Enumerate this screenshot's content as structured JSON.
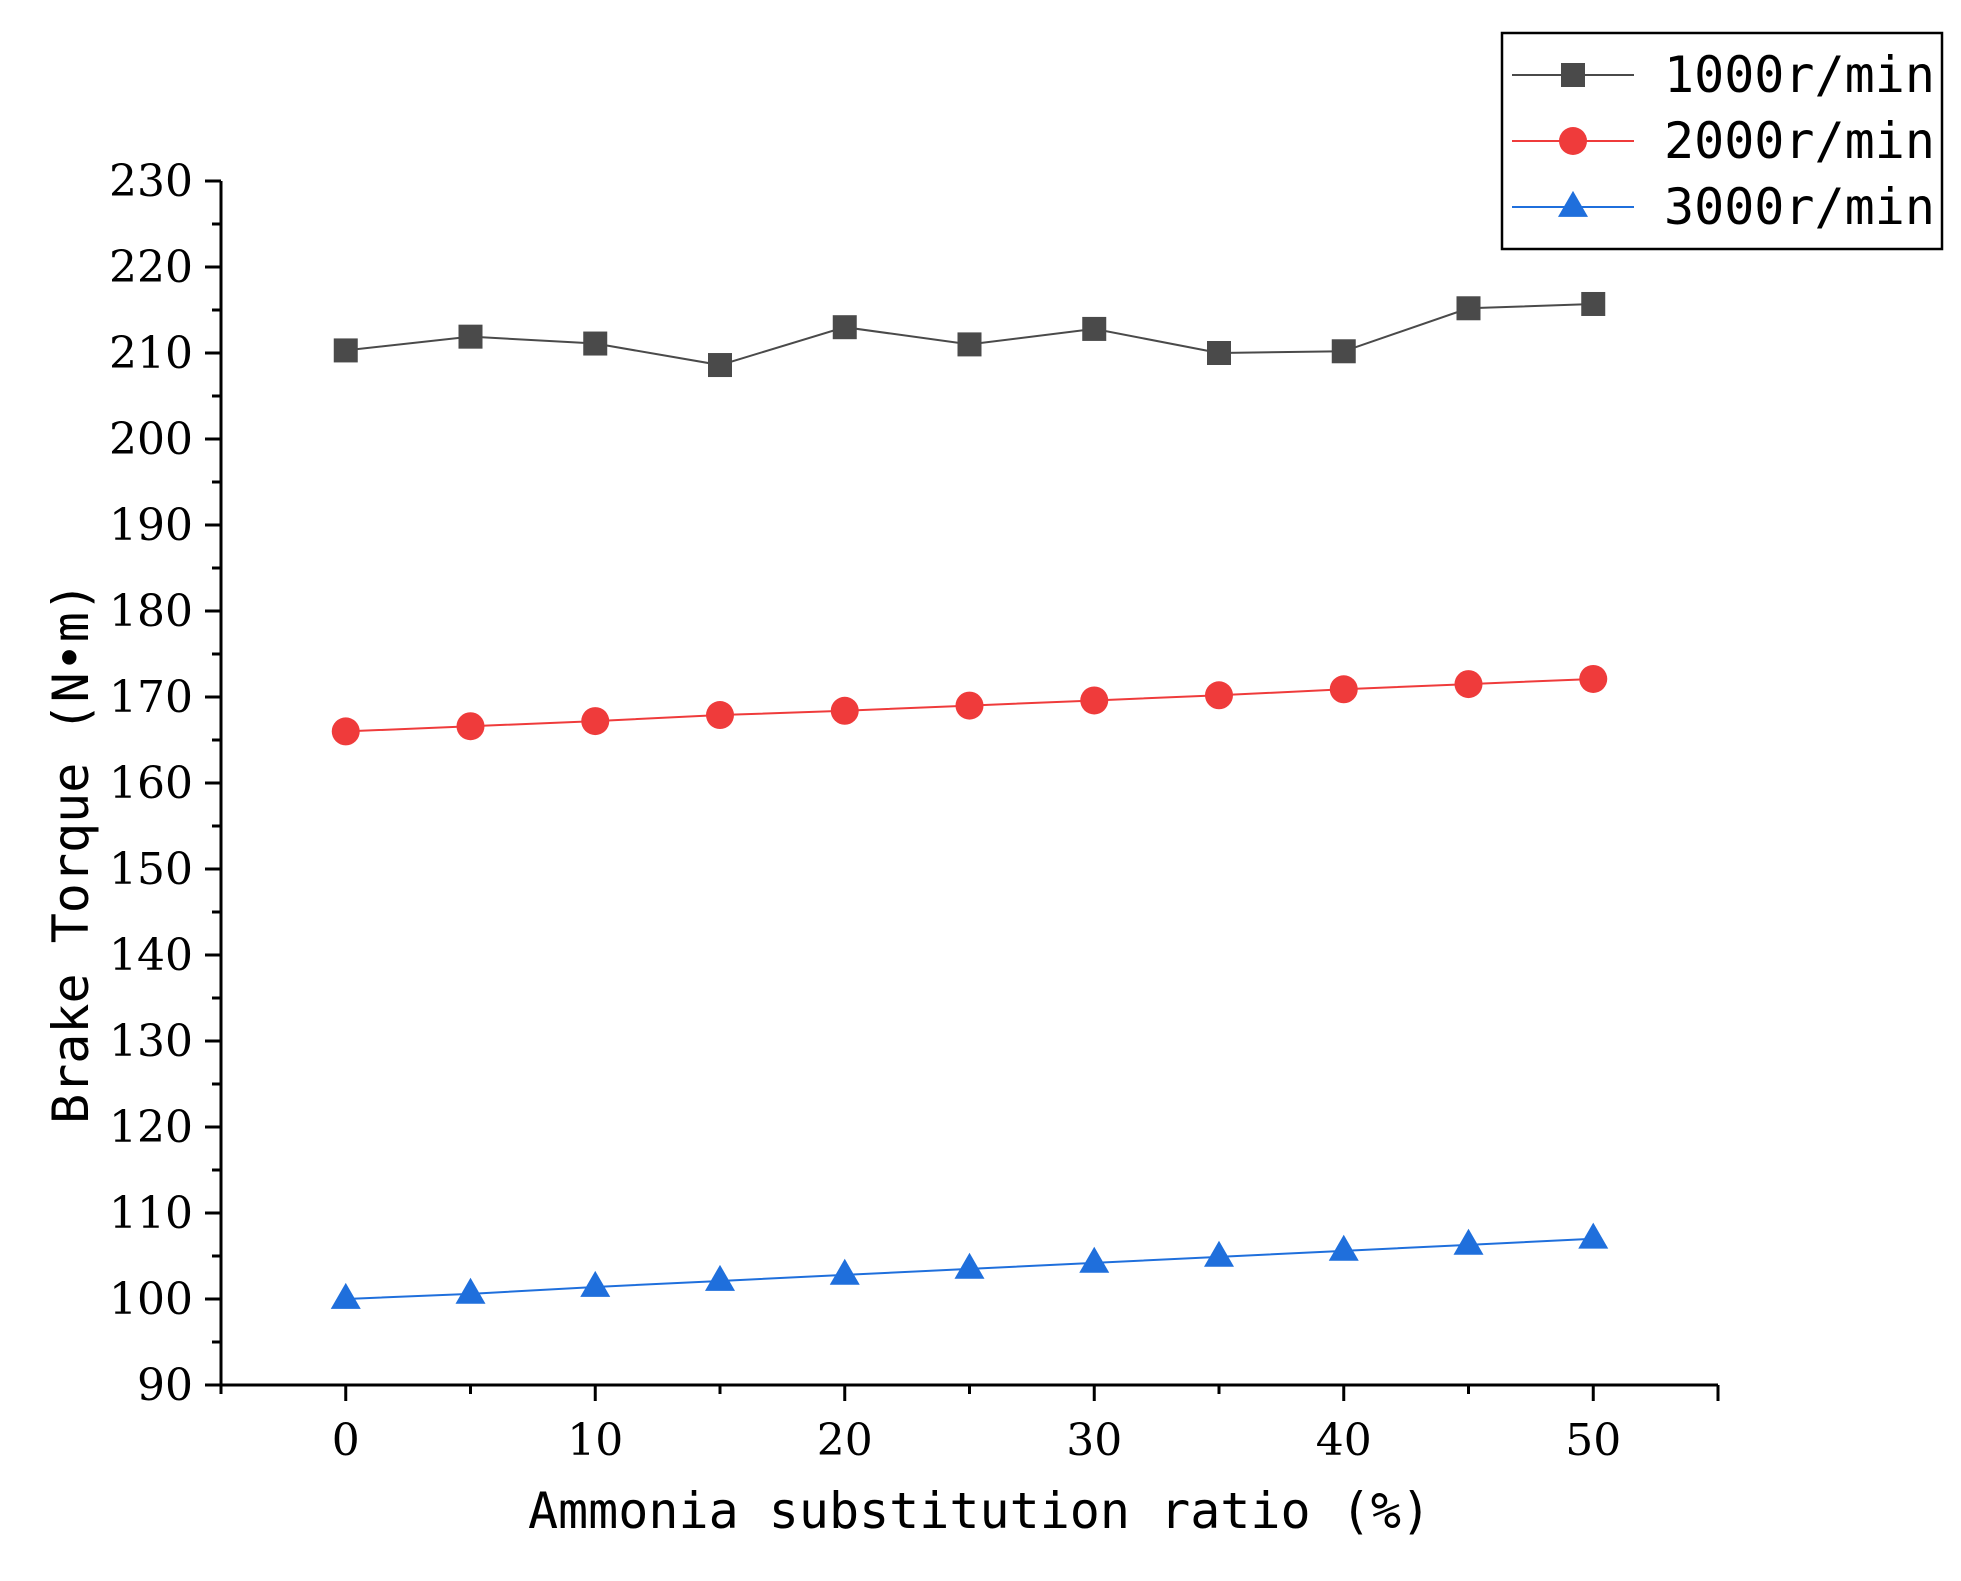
{
  "chart_data": {
    "type": "line",
    "title": "",
    "xlabel": "Ammonia substitution ratio (%)",
    "ylabel": "Brake Torque (N•m)",
    "xlim": [
      -5,
      55
    ],
    "ylim": [
      90,
      230
    ],
    "x_ticks": [
      0,
      10,
      20,
      30,
      40,
      50
    ],
    "y_ticks": [
      90,
      100,
      110,
      120,
      130,
      140,
      150,
      160,
      170,
      180,
      190,
      200,
      210,
      220,
      230
    ],
    "x": [
      0,
      5,
      10,
      15,
      20,
      25,
      30,
      35,
      40,
      45,
      50
    ],
    "grid": false,
    "legend_position": "top-right",
    "series": [
      {
        "name": "1000r/min",
        "marker": "square",
        "color": "#4a4a4a",
        "values": [
          210.3,
          211.9,
          211.1,
          208.6,
          213.0,
          211.0,
          212.8,
          210.0,
          210.2,
          215.2,
          215.7
        ]
      },
      {
        "name": "2000r/min",
        "marker": "circle",
        "color": "#ef3b3b",
        "values": [
          166.0,
          166.6,
          167.2,
          167.9,
          168.4,
          169.0,
          169.6,
          170.2,
          170.9,
          171.5,
          172.1
        ]
      },
      {
        "name": "3000r/min",
        "marker": "triangle",
        "color": "#1f6fdc",
        "values": [
          100.0,
          100.6,
          101.4,
          102.1,
          102.8,
          103.5,
          104.2,
          104.9,
          105.6,
          106.3,
          107.0
        ]
      }
    ]
  }
}
